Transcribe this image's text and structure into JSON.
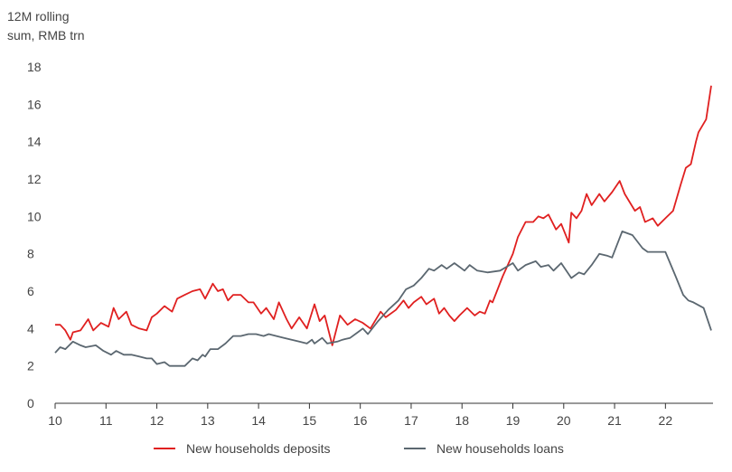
{
  "chart_data": {
    "type": "line",
    "ylabel_lines": [
      "12M rolling",
      "sum, RMB trn"
    ],
    "ylim": [
      0,
      18
    ],
    "yticks": [
      0,
      2,
      4,
      6,
      8,
      10,
      12,
      14,
      16,
      18
    ],
    "xlim": [
      10,
      22.9
    ],
    "xticks": [
      10,
      11,
      12,
      13,
      14,
      15,
      16,
      17,
      18,
      19,
      20,
      21,
      22
    ],
    "xtick_labels": [
      "10",
      "11",
      "12",
      "13",
      "14",
      "15",
      "16",
      "17",
      "18",
      "19",
      "20",
      "21",
      "22"
    ],
    "grid": false,
    "legend_position": "bottom",
    "series": [
      {
        "name": "New households deposits",
        "color": "#e02020",
        "points": [
          [
            10.0,
            4.2
          ],
          [
            10.1,
            4.2
          ],
          [
            10.2,
            3.9
          ],
          [
            10.3,
            3.4
          ],
          [
            10.35,
            3.8
          ],
          [
            10.5,
            3.9
          ],
          [
            10.65,
            4.5
          ],
          [
            10.75,
            3.9
          ],
          [
            10.9,
            4.3
          ],
          [
            11.05,
            4.1
          ],
          [
            11.15,
            5.1
          ],
          [
            11.25,
            4.5
          ],
          [
            11.4,
            4.9
          ],
          [
            11.5,
            4.2
          ],
          [
            11.65,
            4.0
          ],
          [
            11.8,
            3.9
          ],
          [
            11.9,
            4.6
          ],
          [
            12.0,
            4.8
          ],
          [
            12.15,
            5.2
          ],
          [
            12.3,
            4.9
          ],
          [
            12.4,
            5.6
          ],
          [
            12.55,
            5.8
          ],
          [
            12.7,
            6.0
          ],
          [
            12.85,
            6.1
          ],
          [
            12.95,
            5.6
          ],
          [
            13.1,
            6.4
          ],
          [
            13.2,
            6.0
          ],
          [
            13.3,
            6.1
          ],
          [
            13.4,
            5.5
          ],
          [
            13.5,
            5.8
          ],
          [
            13.65,
            5.8
          ],
          [
            13.8,
            5.4
          ],
          [
            13.9,
            5.4
          ],
          [
            14.05,
            4.8
          ],
          [
            14.15,
            5.1
          ],
          [
            14.3,
            4.5
          ],
          [
            14.4,
            5.4
          ],
          [
            14.55,
            4.5
          ],
          [
            14.65,
            4.0
          ],
          [
            14.8,
            4.6
          ],
          [
            14.95,
            4.0
          ],
          [
            15.1,
            5.3
          ],
          [
            15.2,
            4.4
          ],
          [
            15.3,
            4.7
          ],
          [
            15.45,
            3.1
          ],
          [
            15.6,
            4.7
          ],
          [
            15.75,
            4.2
          ],
          [
            15.9,
            4.5
          ],
          [
            16.05,
            4.3
          ],
          [
            16.2,
            4.0
          ],
          [
            16.4,
            4.9
          ],
          [
            16.5,
            4.6
          ],
          [
            16.7,
            5.0
          ],
          [
            16.85,
            5.5
          ],
          [
            16.95,
            5.1
          ],
          [
            17.05,
            5.4
          ],
          [
            17.2,
            5.7
          ],
          [
            17.3,
            5.3
          ],
          [
            17.45,
            5.6
          ],
          [
            17.55,
            4.8
          ],
          [
            17.65,
            5.1
          ],
          [
            17.75,
            4.7
          ],
          [
            17.85,
            4.4
          ],
          [
            17.95,
            4.7
          ],
          [
            18.1,
            5.1
          ],
          [
            18.25,
            4.7
          ],
          [
            18.35,
            4.9
          ],
          [
            18.45,
            4.8
          ],
          [
            18.55,
            5.5
          ],
          [
            18.6,
            5.4
          ],
          [
            18.8,
            6.8
          ],
          [
            19.0,
            8.0
          ],
          [
            19.1,
            8.9
          ],
          [
            19.25,
            9.7
          ],
          [
            19.4,
            9.7
          ],
          [
            19.5,
            10.0
          ],
          [
            19.6,
            9.9
          ],
          [
            19.7,
            10.1
          ],
          [
            19.85,
            9.3
          ],
          [
            19.95,
            9.6
          ],
          [
            20.1,
            8.6
          ],
          [
            20.15,
            10.2
          ],
          [
            20.25,
            9.9
          ],
          [
            20.35,
            10.3
          ],
          [
            20.45,
            11.2
          ],
          [
            20.55,
            10.6
          ],
          [
            20.7,
            11.2
          ],
          [
            20.8,
            10.8
          ],
          [
            20.95,
            11.3
          ],
          [
            21.1,
            11.9
          ],
          [
            21.2,
            11.2
          ],
          [
            21.4,
            10.3
          ],
          [
            21.5,
            10.5
          ],
          [
            21.6,
            9.7
          ],
          [
            21.75,
            9.9
          ],
          [
            21.85,
            9.5
          ],
          [
            22.0,
            9.9
          ],
          [
            22.15,
            10.3
          ],
          [
            22.3,
            11.7
          ],
          [
            22.4,
            12.6
          ],
          [
            22.5,
            12.8
          ],
          [
            22.6,
            14.0
          ],
          [
            22.65,
            14.5
          ],
          [
            22.8,
            15.2
          ],
          [
            22.9,
            17.0
          ]
        ]
      },
      {
        "name": "New households loans",
        "color": "#5b6770",
        "points": [
          [
            10.0,
            2.7
          ],
          [
            10.1,
            3.0
          ],
          [
            10.2,
            2.9
          ],
          [
            10.35,
            3.3
          ],
          [
            10.5,
            3.1
          ],
          [
            10.6,
            3.0
          ],
          [
            10.8,
            3.1
          ],
          [
            10.95,
            2.8
          ],
          [
            11.1,
            2.6
          ],
          [
            11.2,
            2.8
          ],
          [
            11.35,
            2.6
          ],
          [
            11.5,
            2.6
          ],
          [
            11.65,
            2.5
          ],
          [
            11.8,
            2.4
          ],
          [
            11.9,
            2.4
          ],
          [
            12.0,
            2.1
          ],
          [
            12.15,
            2.2
          ],
          [
            12.25,
            2.0
          ],
          [
            12.4,
            2.0
          ],
          [
            12.55,
            2.0
          ],
          [
            12.7,
            2.4
          ],
          [
            12.8,
            2.3
          ],
          [
            12.9,
            2.6
          ],
          [
            12.95,
            2.5
          ],
          [
            13.05,
            2.9
          ],
          [
            13.2,
            2.9
          ],
          [
            13.35,
            3.2
          ],
          [
            13.5,
            3.6
          ],
          [
            13.65,
            3.6
          ],
          [
            13.8,
            3.7
          ],
          [
            13.95,
            3.7
          ],
          [
            14.1,
            3.6
          ],
          [
            14.2,
            3.7
          ],
          [
            14.35,
            3.6
          ],
          [
            14.5,
            3.5
          ],
          [
            14.65,
            3.4
          ],
          [
            14.8,
            3.3
          ],
          [
            14.95,
            3.2
          ],
          [
            15.05,
            3.4
          ],
          [
            15.1,
            3.2
          ],
          [
            15.25,
            3.5
          ],
          [
            15.35,
            3.2
          ],
          [
            15.55,
            3.3
          ],
          [
            15.65,
            3.4
          ],
          [
            15.8,
            3.5
          ],
          [
            15.95,
            3.8
          ],
          [
            16.05,
            4.0
          ],
          [
            16.15,
            3.7
          ],
          [
            16.35,
            4.4
          ],
          [
            16.55,
            5.0
          ],
          [
            16.75,
            5.5
          ],
          [
            16.9,
            6.1
          ],
          [
            17.05,
            6.3
          ],
          [
            17.2,
            6.7
          ],
          [
            17.35,
            7.2
          ],
          [
            17.45,
            7.1
          ],
          [
            17.6,
            7.4
          ],
          [
            17.7,
            7.2
          ],
          [
            17.85,
            7.5
          ],
          [
            17.95,
            7.3
          ],
          [
            18.05,
            7.1
          ],
          [
            18.15,
            7.4
          ],
          [
            18.3,
            7.1
          ],
          [
            18.5,
            7.0
          ],
          [
            18.75,
            7.1
          ],
          [
            19.0,
            7.5
          ],
          [
            19.1,
            7.1
          ],
          [
            19.25,
            7.4
          ],
          [
            19.45,
            7.6
          ],
          [
            19.55,
            7.3
          ],
          [
            19.7,
            7.4
          ],
          [
            19.8,
            7.1
          ],
          [
            19.95,
            7.5
          ],
          [
            20.15,
            6.7
          ],
          [
            20.3,
            7.0
          ],
          [
            20.4,
            6.9
          ],
          [
            20.55,
            7.4
          ],
          [
            20.7,
            8.0
          ],
          [
            20.85,
            7.9
          ],
          [
            20.95,
            7.8
          ],
          [
            21.15,
            9.2
          ],
          [
            21.35,
            9.0
          ],
          [
            21.55,
            8.3
          ],
          [
            21.65,
            8.1
          ],
          [
            21.85,
            8.1
          ],
          [
            22.0,
            8.1
          ],
          [
            22.2,
            6.8
          ],
          [
            22.35,
            5.8
          ],
          [
            22.45,
            5.5
          ],
          [
            22.55,
            5.4
          ],
          [
            22.75,
            5.1
          ],
          [
            22.9,
            3.9
          ]
        ]
      }
    ]
  }
}
